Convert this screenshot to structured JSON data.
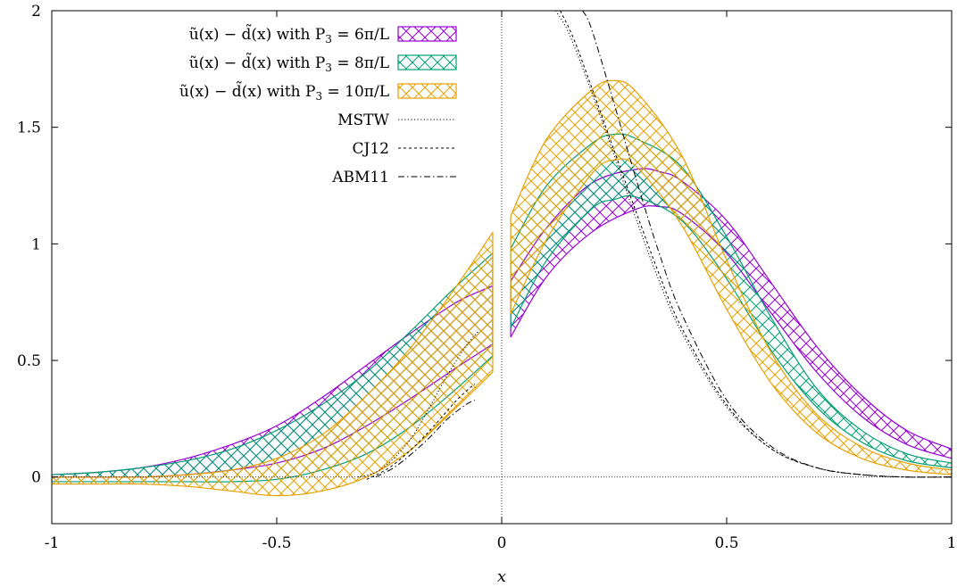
{
  "chart_data": {
    "type": "area",
    "title": "",
    "xlabel": "x",
    "ylabel": "",
    "xlim": [
      -1,
      1
    ],
    "ylim": [
      -0.2,
      2
    ],
    "xticks": [
      -1,
      -0.5,
      0,
      0.5,
      1
    ],
    "yticks": [
      0,
      0.5,
      1,
      1.5,
      2
    ],
    "xtick_labels": [
      "-1",
      "-0.5",
      "0",
      "0.5",
      "1"
    ],
    "ytick_labels": [
      "0",
      "0.5",
      "1",
      "1.5",
      "2"
    ],
    "grid": false,
    "legend_position": "top-right",
    "bands": [
      {
        "name": "ũ(x) − d̃(x) with P3 = 6π/L",
        "label_main": "ũ(x) − d̃(x) with P",
        "label_sub": "3",
        "label_tail": " = 6π/L",
        "color": "#9400d3",
        "pattern": "hatch-cross",
        "negative_x": [
          -1.0,
          -0.9,
          -0.8,
          -0.7,
          -0.6,
          -0.5,
          -0.4,
          -0.3,
          -0.2,
          -0.1,
          -0.02
        ],
        "negative_lower": [
          0.0,
          0.0,
          0.0,
          0.01,
          0.03,
          0.06,
          0.12,
          0.22,
          0.34,
          0.47,
          0.57
        ],
        "negative_upper": [
          0.01,
          0.02,
          0.04,
          0.08,
          0.14,
          0.22,
          0.34,
          0.48,
          0.62,
          0.75,
          0.82
        ],
        "positive_x": [
          0.02,
          0.1,
          0.2,
          0.3,
          0.35,
          0.4,
          0.5,
          0.6,
          0.7,
          0.8,
          0.9,
          1.0
        ],
        "positive_lower": [
          0.6,
          0.86,
          1.05,
          1.15,
          1.16,
          1.13,
          0.96,
          0.7,
          0.45,
          0.26,
          0.14,
          0.08
        ],
        "positive_upper": [
          0.84,
          1.07,
          1.26,
          1.32,
          1.31,
          1.27,
          1.1,
          0.83,
          0.56,
          0.35,
          0.2,
          0.12
        ]
      },
      {
        "name": "ũ(x) − d̃(x) with P3 = 8π/L",
        "label_main": "ũ(x) − d̃(x) with P",
        "label_sub": "3",
        "label_tail": " = 8π/L",
        "color": "#009e73",
        "pattern": "hatch-cross",
        "negative_x": [
          -1.0,
          -0.9,
          -0.8,
          -0.7,
          -0.6,
          -0.5,
          -0.4,
          -0.3,
          -0.2,
          -0.1,
          -0.02
        ],
        "negative_lower": [
          -0.02,
          -0.02,
          -0.02,
          -0.02,
          -0.02,
          -0.01,
          0.03,
          0.1,
          0.22,
          0.38,
          0.52
        ],
        "negative_upper": [
          0.01,
          0.02,
          0.04,
          0.07,
          0.12,
          0.2,
          0.31,
          0.45,
          0.63,
          0.82,
          0.96
        ],
        "positive_x": [
          0.02,
          0.1,
          0.2,
          0.25,
          0.3,
          0.4,
          0.5,
          0.6,
          0.7,
          0.8,
          0.9,
          1.0
        ],
        "positive_lower": [
          0.64,
          0.93,
          1.15,
          1.19,
          1.2,
          1.1,
          0.85,
          0.54,
          0.3,
          0.15,
          0.07,
          0.04
        ],
        "positive_upper": [
          0.98,
          1.25,
          1.43,
          1.47,
          1.45,
          1.33,
          1.03,
          0.68,
          0.38,
          0.2,
          0.1,
          0.06
        ]
      },
      {
        "name": "ũ(x) − d̃(x) with P3 = 10π/L",
        "label_main": "ũ(x) − d̃(x) with P",
        "label_sub": "3",
        "label_tail": " = 10π/L",
        "color": "#e69f00",
        "pattern": "hatch-cross",
        "negative_x": [
          -1.0,
          -0.9,
          -0.8,
          -0.7,
          -0.6,
          -0.5,
          -0.4,
          -0.3,
          -0.2,
          -0.1,
          -0.02
        ],
        "negative_lower": [
          -0.03,
          -0.03,
          -0.03,
          -0.04,
          -0.06,
          -0.08,
          -0.06,
          0.0,
          0.12,
          0.3,
          0.45
        ],
        "negative_upper": [
          0.0,
          0.0,
          0.0,
          0.01,
          0.03,
          0.08,
          0.18,
          0.35,
          0.56,
          0.82,
          1.05
        ],
        "positive_x": [
          0.02,
          0.1,
          0.2,
          0.25,
          0.3,
          0.4,
          0.5,
          0.6,
          0.7,
          0.8,
          0.9,
          1.0
        ],
        "positive_lower": [
          0.7,
          1.02,
          1.3,
          1.36,
          1.33,
          1.08,
          0.72,
          0.4,
          0.19,
          0.08,
          0.03,
          0.01
        ],
        "positive_upper": [
          1.12,
          1.45,
          1.66,
          1.7,
          1.65,
          1.38,
          0.93,
          0.53,
          0.27,
          0.13,
          0.06,
          0.03
        ]
      }
    ],
    "lines": [
      {
        "name": "MSTW",
        "dash": "1.2 2.4",
        "negative_x": [
          -0.32,
          -0.28,
          -0.24,
          -0.2,
          -0.16,
          -0.12,
          -0.08,
          -0.05
        ],
        "negative_y": [
          0.0,
          0.02,
          0.08,
          0.17,
          0.3,
          0.44,
          0.56,
          0.63
        ],
        "positive_x": [
          0.12,
          0.15,
          0.2,
          0.25,
          0.3,
          0.35,
          0.4,
          0.5,
          0.6,
          0.7,
          0.8,
          0.9,
          1.0
        ],
        "positive_y": [
          2.0,
          1.9,
          1.65,
          1.38,
          1.1,
          0.84,
          0.62,
          0.3,
          0.12,
          0.04,
          0.01,
          0.0,
          0.0
        ]
      },
      {
        "name": "CJ12",
        "dash": "3 3",
        "negative_x": [
          -0.3,
          -0.25,
          -0.2,
          -0.15,
          -0.1,
          -0.06
        ],
        "negative_y": [
          -0.01,
          0.04,
          0.12,
          0.22,
          0.33,
          0.4
        ],
        "positive_x": [
          0.13,
          0.16,
          0.2,
          0.25,
          0.3,
          0.35,
          0.4,
          0.5,
          0.6,
          0.7,
          0.8,
          0.9,
          1.0
        ],
        "positive_y": [
          2.0,
          1.88,
          1.67,
          1.4,
          1.13,
          0.87,
          0.64,
          0.31,
          0.12,
          0.04,
          0.01,
          0.0,
          0.0
        ]
      },
      {
        "name": "ABM11",
        "dash": "7 3 1.5 3",
        "negative_x": [
          -0.28,
          -0.24,
          -0.2,
          -0.16,
          -0.12,
          -0.08,
          -0.06
        ],
        "negative_y": [
          0.0,
          0.04,
          0.1,
          0.17,
          0.25,
          0.31,
          0.33
        ],
        "positive_x": [
          0.18,
          0.2,
          0.25,
          0.3,
          0.35,
          0.4,
          0.5,
          0.6,
          0.7,
          0.8,
          0.9,
          1.0
        ],
        "positive_y": [
          2.0,
          1.92,
          1.6,
          1.27,
          0.96,
          0.7,
          0.33,
          0.13,
          0.04,
          0.01,
          0.0,
          0.0
        ]
      }
    ]
  }
}
